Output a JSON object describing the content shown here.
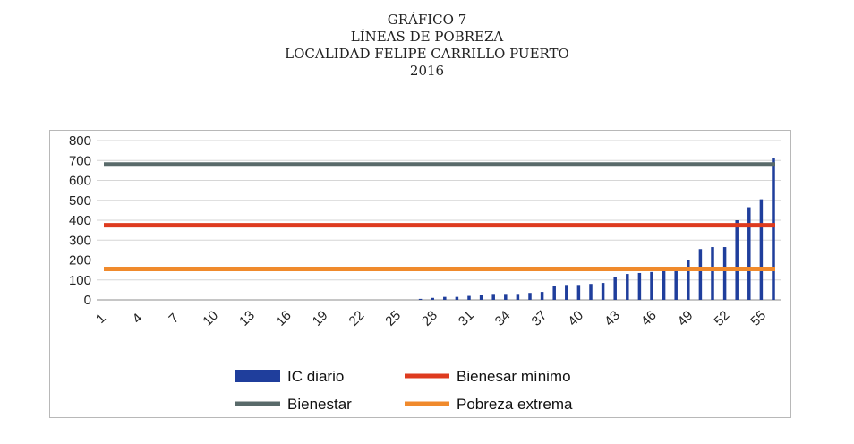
{
  "chart_data": {
    "type": "bar",
    "title_lines": [
      "GRÁFICO 7",
      "LÍNEAS DE POBREZA",
      "LOCALIDAD FELIPE CARRILLO PUERTO",
      "2016"
    ],
    "xlabel": "",
    "ylabel": "",
    "ylim": [
      0,
      800
    ],
    "y_ticks": [
      0,
      100,
      200,
      300,
      400,
      500,
      600,
      700,
      800
    ],
    "x_ticks": [
      1,
      4,
      7,
      10,
      13,
      16,
      19,
      22,
      25,
      28,
      31,
      34,
      37,
      40,
      43,
      46,
      49,
      52,
      55
    ],
    "categories": [
      1,
      2,
      3,
      4,
      5,
      6,
      7,
      8,
      9,
      10,
      11,
      12,
      13,
      14,
      15,
      16,
      17,
      18,
      19,
      20,
      21,
      22,
      23,
      24,
      25,
      26,
      27,
      28,
      29,
      30,
      31,
      32,
      33,
      34,
      35,
      36,
      37,
      38,
      39,
      40,
      41,
      42,
      43,
      44,
      45,
      46,
      47,
      48,
      49,
      50,
      51,
      52,
      53,
      54,
      55,
      56
    ],
    "series": [
      {
        "name": "IC diario",
        "kind": "bar",
        "color": "#1f3e9c",
        "values": [
          0,
          0,
          0,
          0,
          0,
          0,
          0,
          0,
          0,
          0,
          0,
          0,
          0,
          0,
          0,
          0,
          0,
          0,
          0,
          0,
          0,
          0,
          0,
          0,
          0,
          0,
          5,
          10,
          15,
          15,
          20,
          25,
          30,
          30,
          30,
          35,
          40,
          70,
          75,
          75,
          80,
          85,
          115,
          130,
          135,
          140,
          145,
          150,
          200,
          255,
          265,
          265,
          400,
          465,
          505,
          710
        ]
      },
      {
        "name": "Bienestar",
        "kind": "line",
        "color": "#596a6a",
        "value": 680
      },
      {
        "name": "Bienesar mínimo",
        "kind": "line",
        "color": "#de3b1f",
        "value": 375
      },
      {
        "name": "Pobreza extrema",
        "kind": "line",
        "color": "#f08a2c",
        "value": 155
      }
    ],
    "legend": [
      {
        "label": "IC diario",
        "color": "#1f3e9c",
        "kind": "bar"
      },
      {
        "label": "Bienesar mínimo",
        "color": "#de3b1f",
        "kind": "line"
      },
      {
        "label": "Bienestar",
        "color": "#596a6a",
        "kind": "line"
      },
      {
        "label": "Pobreza extrema",
        "color": "#f08a2c",
        "kind": "line"
      }
    ],
    "legend_position": "bottom",
    "grid": true
  }
}
